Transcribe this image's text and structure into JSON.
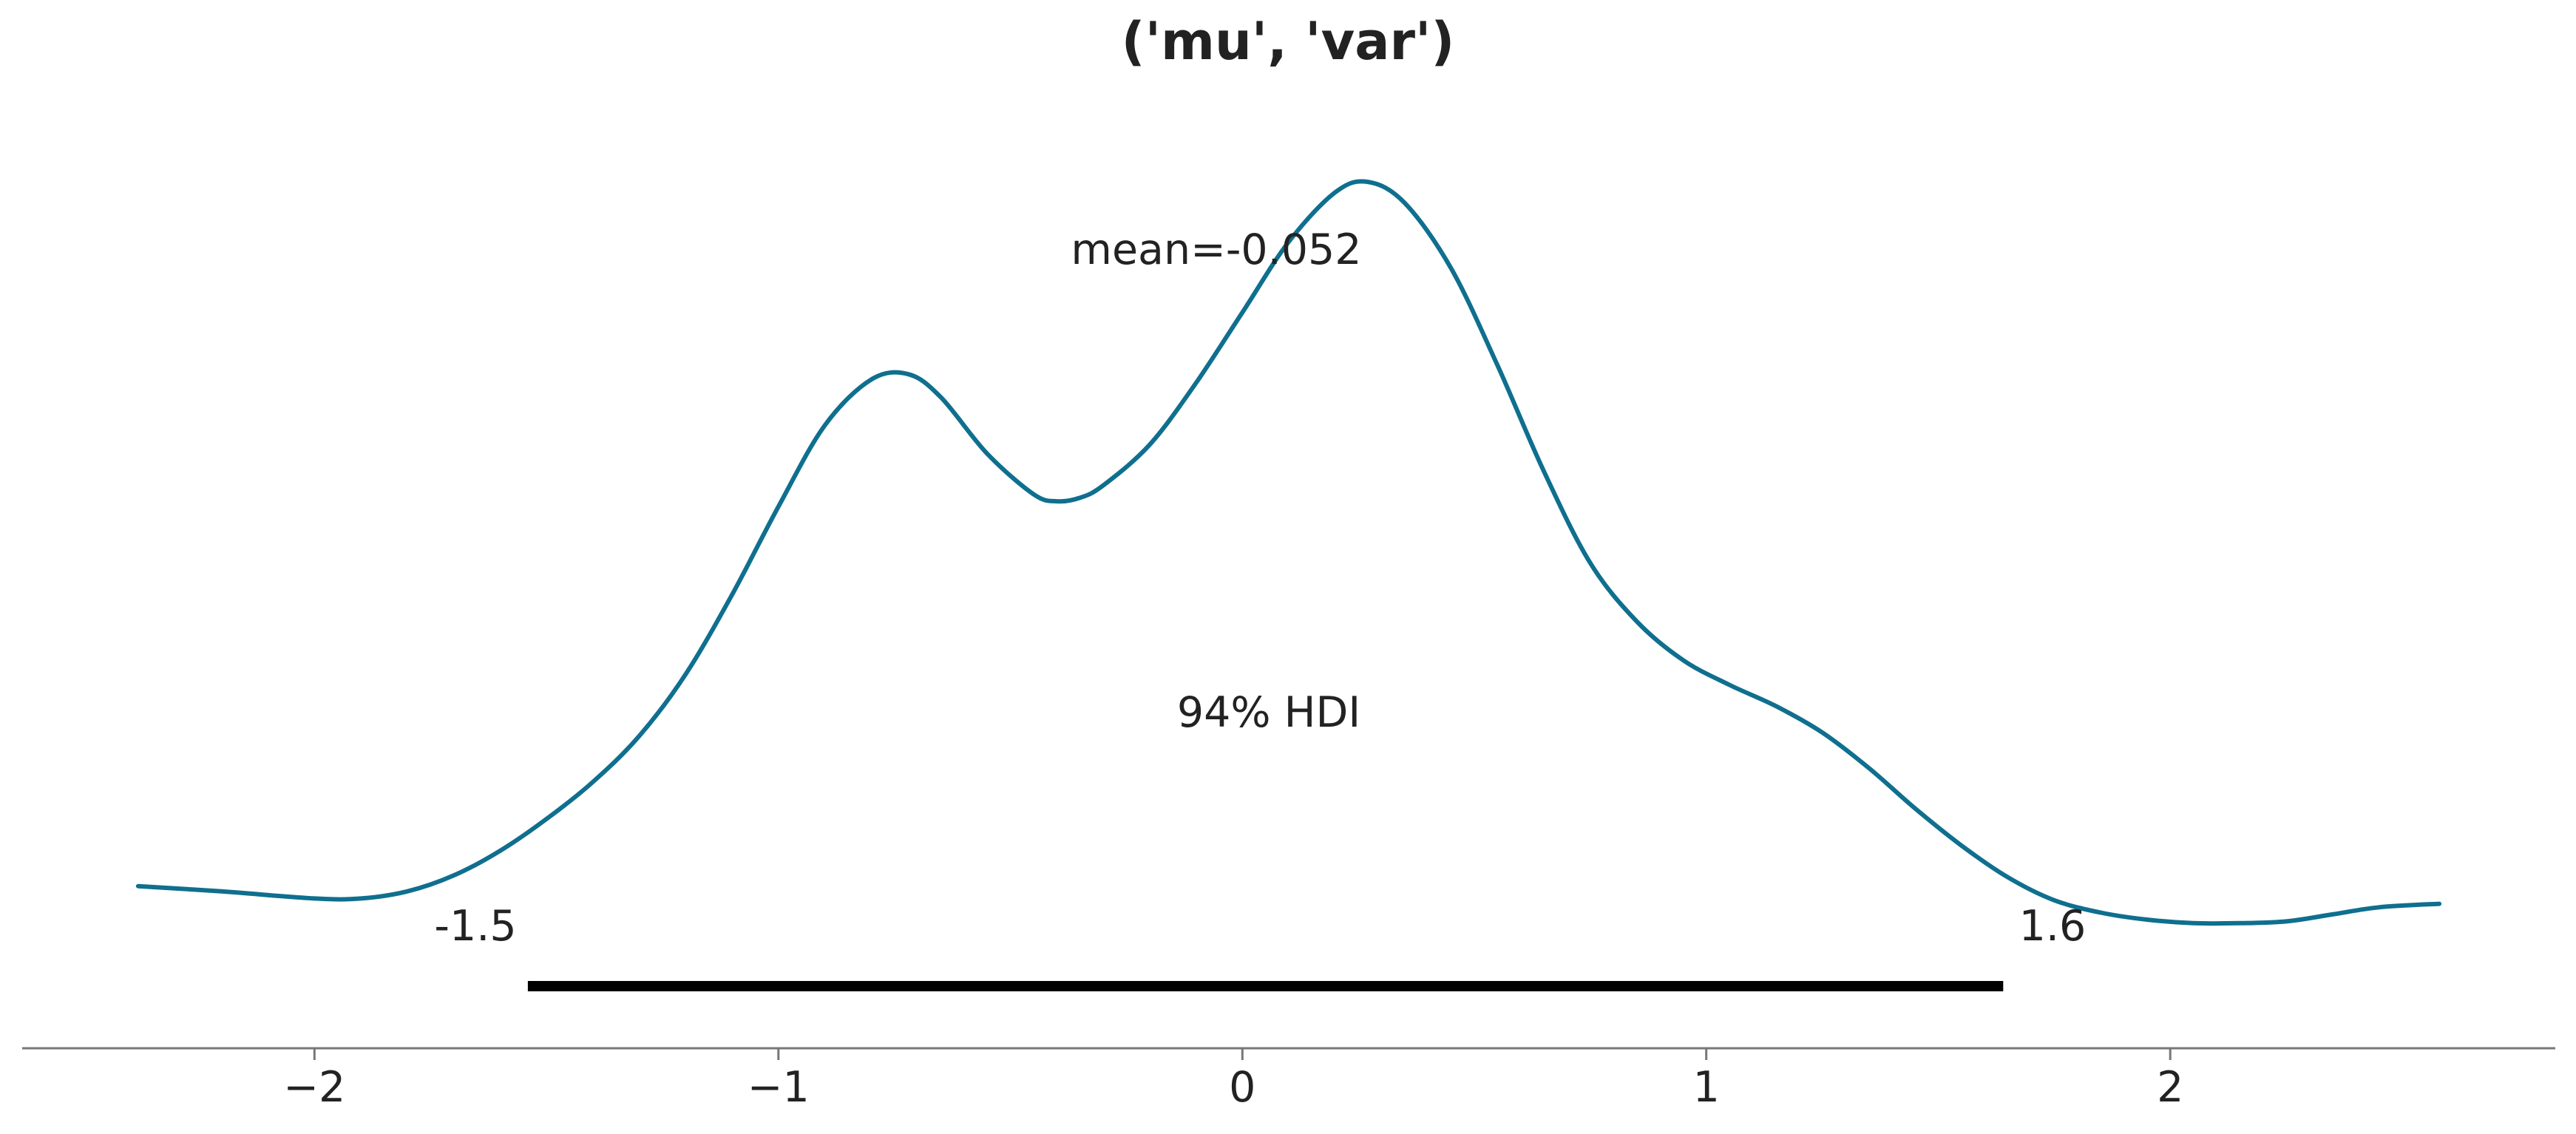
{
  "chart_data": {
    "type": "line",
    "title": "('mu', 'var')",
    "xlabel": "",
    "ylabel": "",
    "xlim": [
      -2.63,
      2.83
    ],
    "ylim": [
      -0.02,
      0.47
    ],
    "grid": false,
    "legend": "none",
    "line_color": "#0f6f8e",
    "x_ticks": [
      -2,
      -1,
      0,
      1,
      2
    ],
    "x_tick_labels": [
      "−2",
      "−1",
      "0",
      "1",
      "2"
    ],
    "series": [
      {
        "x": [
          -2.38,
          -2.2,
          -2.0,
          -1.9,
          -1.8,
          -1.7,
          -1.6,
          -1.5,
          -1.4,
          -1.3,
          -1.2,
          -1.1,
          -1.0,
          -0.9,
          -0.8,
          -0.72,
          -0.65,
          -0.55,
          -0.45,
          -0.4,
          -0.35,
          -0.3,
          -0.2,
          -0.1,
          0.0,
          0.1,
          0.2,
          0.27,
          0.35,
          0.45,
          0.55,
          0.65,
          0.75,
          0.85,
          0.95,
          1.05,
          1.15,
          1.25,
          1.35,
          1.45,
          1.55,
          1.65,
          1.75,
          1.85,
          1.95,
          2.05,
          2.15,
          2.25,
          2.35,
          2.45,
          2.58
        ],
        "y": [
          0.035,
          0.032,
          0.028,
          0.028,
          0.032,
          0.041,
          0.055,
          0.073,
          0.094,
          0.12,
          0.155,
          0.2,
          0.25,
          0.296,
          0.322,
          0.325,
          0.312,
          0.28,
          0.257,
          0.253,
          0.255,
          0.262,
          0.285,
          0.32,
          0.36,
          0.4,
          0.428,
          0.434,
          0.422,
          0.385,
          0.33,
          0.27,
          0.218,
          0.185,
          0.163,
          0.149,
          0.137,
          0.122,
          0.102,
          0.079,
          0.058,
          0.04,
          0.027,
          0.02,
          0.016,
          0.014,
          0.014,
          0.015,
          0.019,
          0.023,
          0.025
        ]
      }
    ],
    "annotations": {
      "mean": "mean=-0.052",
      "hdi_label": "94% HDI",
      "hdi_low_label": "-1.5",
      "hdi_high_label": "1.6"
    },
    "hdi": [
      -1.54,
      1.64
    ]
  }
}
